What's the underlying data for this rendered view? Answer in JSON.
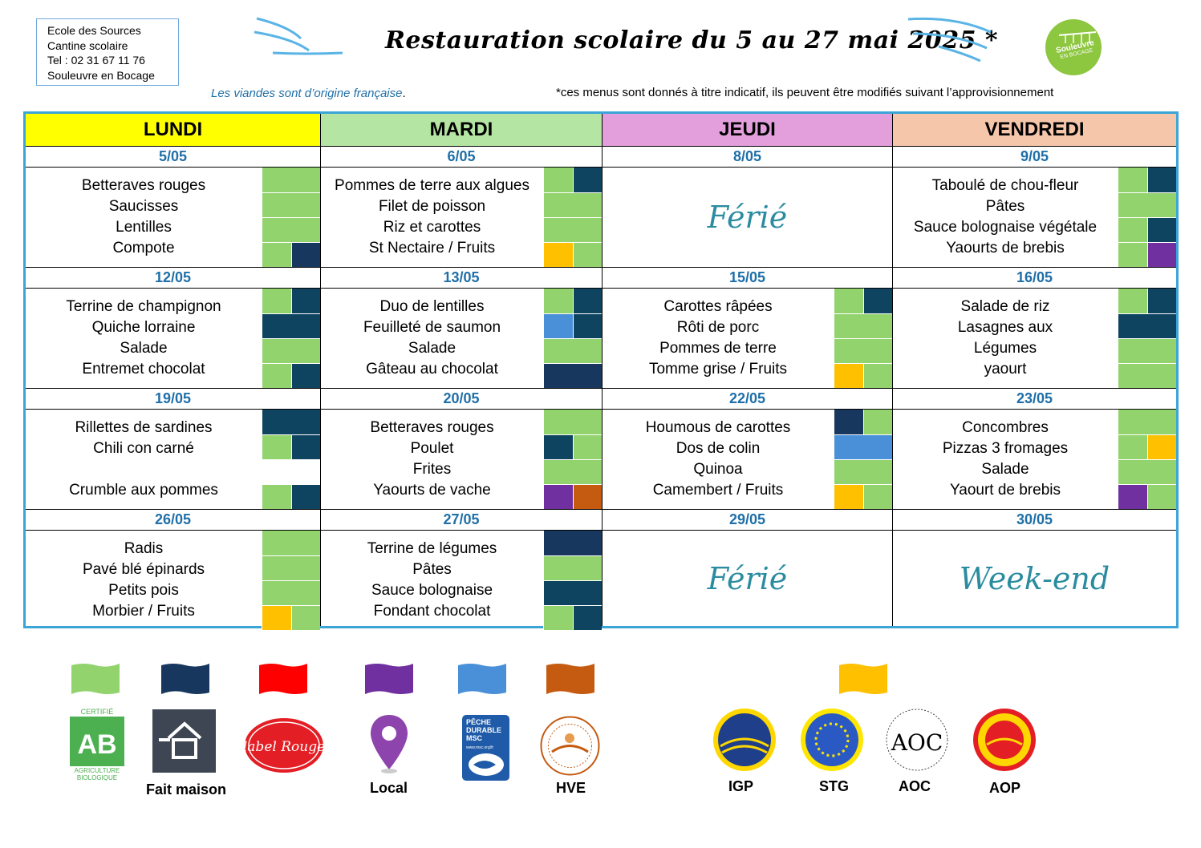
{
  "school": {
    "lines": [
      "Ecole des Sources",
      "Cantine scolaire",
      "Tel : 02 31 67 11 76",
      "Souleuvre en Bocage"
    ]
  },
  "title": "Restauration scolaire du 5 au 27 mai 2025 *",
  "logo": {
    "line1": "Souleuvre",
    "line2": "EN BOCAGE"
  },
  "note_left": "Les viandes sont d’origine française",
  "note_left_dot": ".",
  "note_right": "*ces menus sont donnés à titre indicatif, ils peuvent être modifiés suivant l’approvisionnement",
  "colors": {
    "bio": "#92d36e",
    "fait_maison": "#17375e",
    "label_rouge": "#ff0000",
    "local": "#7030a0",
    "msc": "#4a90d9",
    "hve": "#c55a11",
    "signe_qualite": "#ffc000",
    "dark_teal": "#0e4460",
    "white": "#ffffff"
  },
  "days": [
    {
      "label": "LUNDI",
      "color": "#ffff00"
    },
    {
      "label": "MARDI",
      "color": "#b5e5a2"
    },
    {
      "label": "JEUDI",
      "color": "#e29fdc"
    },
    {
      "label": "VENDREDI",
      "color": "#f5c6aa"
    }
  ],
  "weeks": [
    {
      "dates": [
        "5/05",
        "6/05",
        "8/05",
        "9/05"
      ],
      "cells": [
        {
          "items": [
            "Betteraves rouges",
            "Saucisses",
            "Lentilles",
            "Compote"
          ],
          "flags": [
            [
              "bio"
            ],
            [
              "bio"
            ],
            [
              "bio"
            ],
            [
              "bio",
              "fait_maison"
            ]
          ]
        },
        {
          "items": [
            "Pommes de terre aux algues",
            "Filet de poisson",
            "Riz et carottes",
            "St Nectaire / Fruits"
          ],
          "flags": [
            [
              "bio",
              "dark_teal"
            ],
            [
              "bio"
            ],
            [
              "bio"
            ],
            [
              "signe_qualite",
              "bio"
            ]
          ]
        },
        {
          "special": "Férié"
        },
        {
          "items": [
            "Taboulé de chou-fleur",
            "Pâtes",
            "Sauce bolognaise végétale",
            "Yaourts de brebis"
          ],
          "flags": [
            [
              "bio",
              "dark_teal"
            ],
            [
              "bio"
            ],
            [
              "bio",
              "dark_teal"
            ],
            [
              "bio",
              "local"
            ]
          ]
        }
      ]
    },
    {
      "dates": [
        "12/05",
        "13/05",
        "15/05",
        "16/05"
      ],
      "cells": [
        {
          "items": [
            "Terrine de champignon",
            "Quiche lorraine",
            "Salade",
            "Entremet chocolat"
          ],
          "flags": [
            [
              "bio",
              "dark_teal"
            ],
            [
              "dark_teal"
            ],
            [
              "bio"
            ],
            [
              "bio",
              "dark_teal"
            ]
          ]
        },
        {
          "items": [
            "Duo de lentilles",
            "Feuilleté de saumon",
            "Salade",
            "Gâteau au chocolat"
          ],
          "flags": [
            [
              "bio",
              "dark_teal"
            ],
            [
              "msc",
              "dark_teal"
            ],
            [
              "bio"
            ],
            [
              "fait_maison"
            ]
          ]
        },
        {
          "items": [
            "Carottes râpées",
            "Rôti de porc",
            "Pommes de terre",
            "Tomme grise / Fruits"
          ],
          "flags": [
            [
              "bio",
              "dark_teal"
            ],
            [
              "bio"
            ],
            [
              "bio"
            ],
            [
              "signe_qualite",
              "bio"
            ]
          ]
        },
        {
          "items": [
            "Salade de riz",
            "Lasagnes aux",
            "Légumes",
            "yaourt"
          ],
          "flags": [
            [
              "bio",
              "dark_teal"
            ],
            [
              "dark_teal"
            ],
            [
              "bio"
            ],
            [
              "bio"
            ]
          ]
        }
      ]
    },
    {
      "dates": [
        "19/05",
        "20/05",
        "22/05",
        "23/05"
      ],
      "cells": [
        {
          "items": [
            "Rillettes de sardines",
            "Chili con carné",
            "",
            "Crumble aux pommes"
          ],
          "flags": [
            [
              "dark_teal"
            ],
            [
              "bio",
              "dark_teal"
            ],
            [
              "white"
            ],
            [
              "bio",
              "dark_teal"
            ]
          ]
        },
        {
          "items": [
            "Betteraves rouges",
            "Poulet",
            "Frites",
            "Yaourts de vache"
          ],
          "flags": [
            [
              "bio"
            ],
            [
              "dark_teal",
              "bio"
            ],
            [
              "bio"
            ],
            [
              "local",
              "hve"
            ]
          ]
        },
        {
          "items": [
            "Houmous de carottes",
            "Dos de colin",
            "Quinoa",
            "Camembert / Fruits"
          ],
          "flags": [
            [
              "fait_maison",
              "bio"
            ],
            [
              "msc"
            ],
            [
              "bio"
            ],
            [
              "signe_qualite",
              "bio"
            ]
          ]
        },
        {
          "items": [
            "Concombres",
            "Pizzas 3 fromages",
            "Salade",
            "Yaourt de brebis"
          ],
          "flags": [
            [
              "bio"
            ],
            [
              "bio",
              "signe_qualite"
            ],
            [
              "bio"
            ],
            [
              "local",
              "bio"
            ]
          ]
        }
      ]
    },
    {
      "dates": [
        "26/05",
        "27/05",
        "29/05",
        "30/05"
      ],
      "cells": [
        {
          "items": [
            "Radis",
            "Pavé blé épinards",
            "Petits pois",
            "Morbier / Fruits"
          ],
          "flags": [
            [
              "bio"
            ],
            [
              "bio"
            ],
            [
              "bio"
            ],
            [
              "signe_qualite",
              "bio"
            ]
          ]
        },
        {
          "items": [
            "Terrine de légumes",
            "Pâtes",
            "Sauce bolognaise",
            "Fondant chocolat"
          ],
          "flags": [
            [
              "fait_maison"
            ],
            [
              "bio"
            ],
            [
              "dark_teal"
            ],
            [
              "bio",
              "dark_teal"
            ]
          ]
        },
        {
          "special": "Férié"
        },
        {
          "special": "Week-end"
        }
      ]
    }
  ],
  "legend": {
    "bio_logo_top": "CERTIFIÉ",
    "bio_logo_main": "AB",
    "bio_logo_bottom1": "AGRICULTURE",
    "bio_logo_bottom2": "BIOLOGIQUE",
    "fait_maison": "Fait maison",
    "label_rouge_logo": "label Rouge",
    "local": "Local",
    "msc_logo_line1": "PÊCHE",
    "msc_logo_line2": "DURABLE",
    "msc_logo_line3": "MSC",
    "msc_logo_url": "www.msc.org/fr",
    "hve": "HVE",
    "igp": "IGP",
    "stg": "STG",
    "aoc": "AOC",
    "aoc_logo": "AOC",
    "aop": "AOP"
  }
}
